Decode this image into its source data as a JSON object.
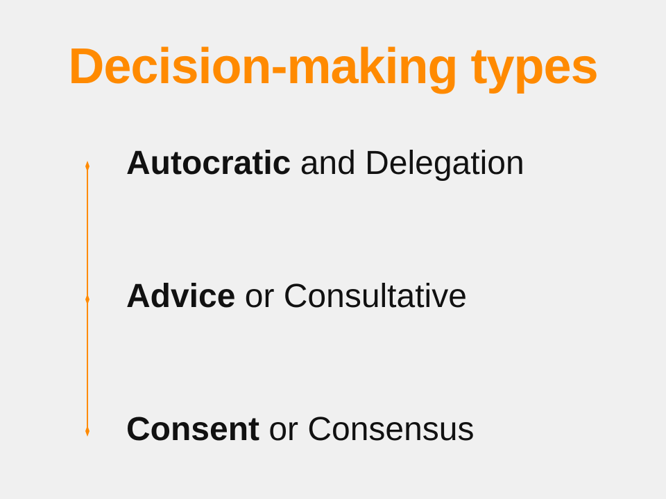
{
  "slide": {
    "title": "Decision-making types",
    "accent_color": "#ff8a00",
    "text_color": "#111111",
    "background_color": "#f0f0f0",
    "items": [
      {
        "bold": "Autocratic",
        "rest": " and Delegation",
        "marker_icon": "diamond-marker-icon"
      },
      {
        "bold": "Advice",
        "rest": " or Consultative",
        "marker_icon": "diamond-marker-icon"
      },
      {
        "bold": "Consent",
        "rest": " or Consensus",
        "marker_icon": "diamond-marker-icon"
      }
    ]
  }
}
